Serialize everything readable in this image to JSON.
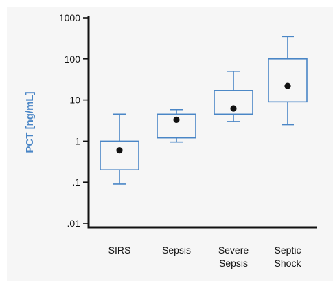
{
  "chart_data": {
    "type": "box",
    "ylabel": "PCT [ng/mL]",
    "yscale": "log",
    "ylim": [
      0.01,
      1000
    ],
    "yticks": [
      {
        "value": 1000,
        "label": "1000"
      },
      {
        "value": 100,
        "label": "100"
      },
      {
        "value": 10,
        "label": "10"
      },
      {
        "value": 1,
        "label": "1"
      },
      {
        "value": 0.1,
        "label": ".1"
      },
      {
        "value": 0.01,
        "label": ".01"
      }
    ],
    "categories": [
      {
        "lines": [
          "SIRS"
        ],
        "whisker_low": 0.09,
        "q1": 0.2,
        "median": 0.6,
        "q3": 1.0,
        "whisker_high": 4.5
      },
      {
        "lines": [
          "Sepsis"
        ],
        "whisker_low": 0.95,
        "q1": 1.2,
        "median": 3.3,
        "q3": 4.5,
        "whisker_high": 5.8
      },
      {
        "lines": [
          "Severe",
          "Sepsis"
        ],
        "whisker_low": 3.0,
        "q1": 4.5,
        "median": 6.2,
        "q3": 17,
        "whisker_high": 50
      },
      {
        "lines": [
          "Septic",
          "Shock"
        ],
        "whisker_low": 2.5,
        "q1": 9,
        "median": 22,
        "q3": 100,
        "whisker_high": 350
      }
    ],
    "colors": {
      "box": "#4a86c6",
      "median_dot": "#111111",
      "axis": "#111111",
      "ylabel": "#4a86c6",
      "background": "#f6f6f6"
    },
    "grid": false
  }
}
